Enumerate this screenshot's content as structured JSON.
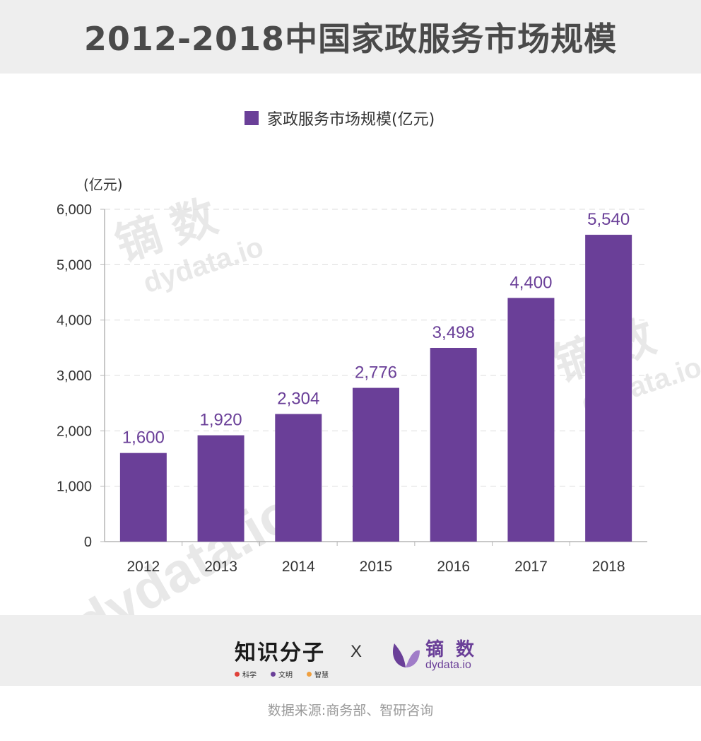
{
  "colors": {
    "bar": "#6a3f98",
    "label": "#6a3f98",
    "header_bg": "#eeeeee"
  },
  "chart_data": {
    "type": "bar",
    "title": "2012-2018中国家政服务市场规模",
    "categories": [
      "2012",
      "2013",
      "2014",
      "2015",
      "2016",
      "2017",
      "2018"
    ],
    "series": [
      {
        "name": "家政服务市场规模(亿元)",
        "values": [
          1600,
          1920,
          2304,
          2776,
          3498,
          4400,
          5540
        ]
      }
    ],
    "value_labels": [
      "1,600",
      "1,920",
      "2,304",
      "2,776",
      "3,498",
      "4,400",
      "5,540"
    ],
    "ylabel": "(亿元)",
    "ylim": [
      0,
      6000
    ],
    "yticks": [
      0,
      1000,
      2000,
      3000,
      4000,
      5000,
      6000
    ],
    "ytick_labels": [
      "0",
      "1,000",
      "2,000",
      "3,000",
      "4,000",
      "5,000",
      "6,000"
    ],
    "grid": true,
    "legend": "top-center"
  },
  "watermark": {
    "cn": "镝 数",
    "en": "dydata.io"
  },
  "footer": {
    "logo_zhishi": "知识分子",
    "tags": [
      "科学",
      "文明",
      "智慧"
    ],
    "tag_colors": [
      "#e0413a",
      "#6a3f98",
      "#f0a040"
    ],
    "separator": "X",
    "logo_dydata_cn": "镝 数",
    "logo_dydata_en": "dydata.io"
  },
  "source": "数据来源:商务部、智研咨询"
}
